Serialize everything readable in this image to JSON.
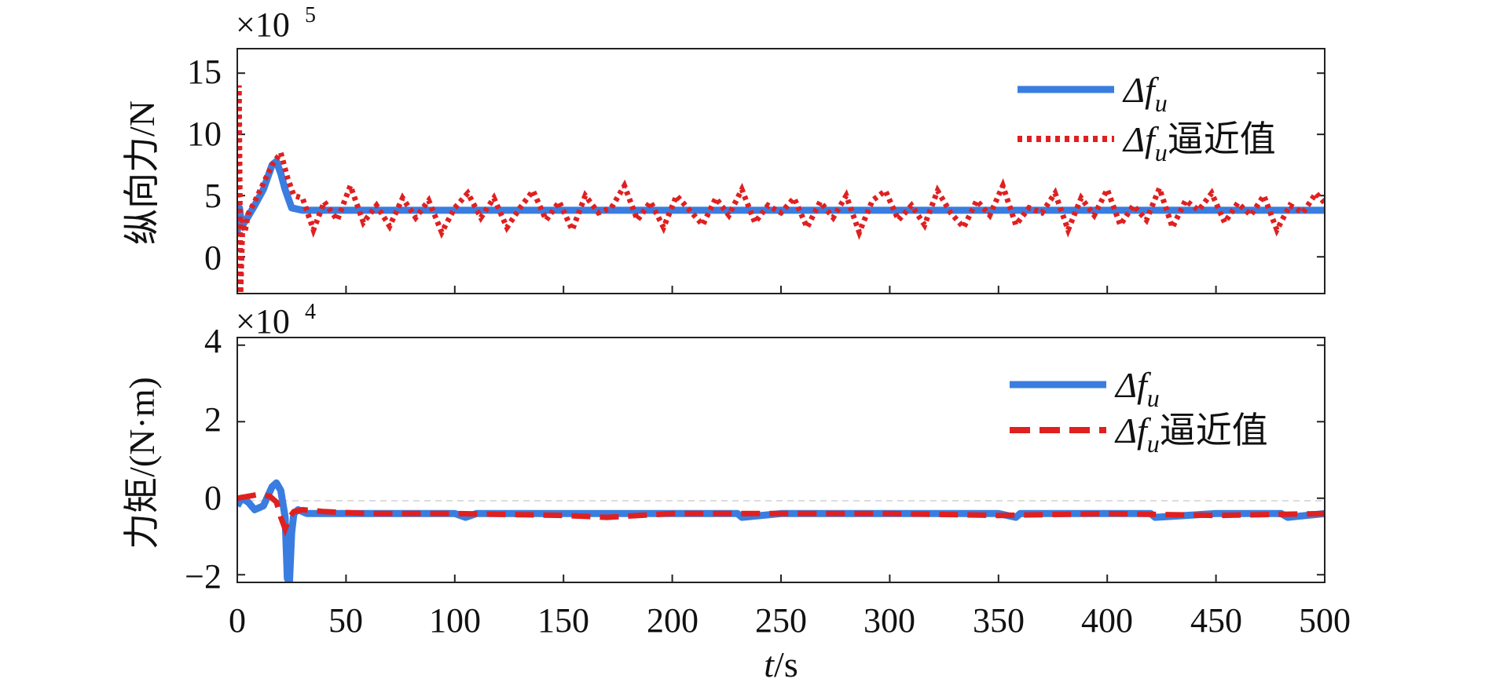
{
  "chart_data": [
    {
      "type": "line",
      "ylabel": "纵向力/N",
      "y_multiplier": {
        "base": "×10",
        "exponent": "5"
      },
      "xlim": [
        0,
        500
      ],
      "ylim": [
        -3,
        17
      ],
      "x_ticks": [
        0,
        50,
        100,
        150,
        200,
        250,
        300,
        350,
        400,
        450,
        500
      ],
      "y_ticks": [
        0,
        5,
        10,
        15
      ],
      "y_tick_labels": [
        "0",
        "5",
        "10",
        "15"
      ],
      "legend_position": "top-right",
      "series": [
        {
          "name": "Δfu",
          "legend_main": "Δf",
          "legend_sub": "u",
          "legend_suffix": "",
          "color": "#3a7de0",
          "style": "solid",
          "x": [
            0,
            1,
            2,
            4,
            8,
            12,
            16,
            18,
            20,
            22,
            25,
            30,
            40,
            60,
            100,
            150,
            200,
            250,
            300,
            350,
            400,
            450,
            500
          ],
          "values": [
            2.0,
            4.0,
            2.5,
            3.0,
            4.2,
            5.5,
            7.5,
            7.8,
            6.8,
            5.5,
            4.0,
            3.8,
            3.8,
            3.8,
            3.8,
            3.8,
            3.8,
            3.8,
            3.8,
            3.8,
            3.8,
            3.8,
            3.8
          ]
        },
        {
          "name": "Δfu逼近值",
          "legend_main": "Δf",
          "legend_sub": "u",
          "legend_suffix": "逼近值",
          "color": "#e02020",
          "style": "dotted",
          "x": [
            0,
            0.8,
            1.5,
            2.5,
            3.5,
            5,
            8,
            12,
            16,
            20,
            23,
            26,
            30,
            35,
            40,
            46,
            52,
            58,
            64,
            70,
            76,
            82,
            88,
            94,
            100,
            106,
            112,
            118,
            124,
            130,
            136,
            142,
            148,
            154,
            160,
            166,
            172,
            178,
            184,
            190,
            196,
            202,
            208,
            214,
            220,
            226,
            232,
            238,
            244,
            250,
            256,
            262,
            268,
            274,
            280,
            286,
            292,
            298,
            304,
            310,
            316,
            322,
            328,
            334,
            340,
            346,
            352,
            358,
            364,
            370,
            376,
            382,
            388,
            394,
            400,
            406,
            412,
            418,
            424,
            430,
            436,
            442,
            448,
            454,
            460,
            466,
            472,
            478,
            484,
            490,
            496,
            500
          ],
          "values": [
            1.0,
            14.0,
            -3.0,
            3.0,
            2.0,
            3.5,
            4.5,
            6.0,
            7.5,
            8.5,
            6.5,
            5.0,
            4.8,
            2.2,
            4.5,
            3.0,
            5.8,
            2.8,
            4.2,
            2.5,
            4.8,
            3.2,
            4.6,
            2.0,
            4.0,
            5.2,
            3.2,
            4.8,
            2.4,
            4.0,
            5.4,
            3.0,
            4.5,
            2.2,
            5.0,
            3.6,
            4.0,
            5.8,
            3.0,
            4.5,
            2.4,
            5.0,
            3.8,
            2.6,
            4.8,
            3.4,
            5.5,
            2.8,
            4.2,
            3.6,
            4.8,
            2.4,
            4.5,
            3.2,
            5.0,
            2.0,
            4.6,
            5.4,
            3.0,
            4.2,
            2.6,
            5.4,
            3.6,
            2.4,
            4.6,
            3.4,
            5.8,
            2.6,
            4.0,
            3.6,
            5.2,
            2.2,
            4.8,
            3.4,
            5.5,
            2.6,
            4.2,
            3.0,
            5.6,
            2.4,
            4.6,
            3.8,
            5.2,
            2.8,
            4.4,
            3.4,
            5.0,
            2.2,
            4.2,
            3.6,
            5.2,
            4.4
          ]
        }
      ]
    },
    {
      "type": "line",
      "ylabel": "力矩/(N·m)",
      "y_multiplier": {
        "base": "×10",
        "exponent": "4"
      },
      "xlabel_main": "t",
      "xlabel_suffix": "/s",
      "xlim": [
        0,
        500
      ],
      "ylim": [
        -2.2,
        4.2
      ],
      "x_ticks": [
        0,
        50,
        100,
        150,
        200,
        250,
        300,
        350,
        400,
        450,
        500
      ],
      "x_tick_labels": [
        "0",
        "50",
        "100",
        "150",
        "200",
        "250",
        "300",
        "350",
        "400",
        "450",
        "500"
      ],
      "y_ticks": [
        -2,
        0,
        2,
        4
      ],
      "y_tick_labels": [
        "−2",
        "0",
        "2",
        "4"
      ],
      "legend_position": "top-right",
      "series": [
        {
          "name": "Δfu",
          "legend_main": "Δf",
          "legend_sub": "u",
          "legend_suffix": "",
          "color": "#3a7de0",
          "style": "solid",
          "x": [
            0,
            2,
            5,
            8,
            12,
            16,
            18,
            20,
            22,
            23,
            24,
            25,
            26,
            28,
            32,
            40,
            60,
            80,
            100,
            105,
            110,
            150,
            160,
            200,
            230,
            232,
            250,
            295,
            300,
            350,
            358,
            360,
            400,
            420,
            422,
            450,
            480,
            483,
            500
          ],
          "values": [
            -0.2,
            0.0,
            -0.1,
            -0.3,
            -0.2,
            0.3,
            0.4,
            0.2,
            -0.5,
            -2.1,
            -2.2,
            -0.9,
            -0.4,
            -0.3,
            -0.4,
            -0.4,
            -0.4,
            -0.4,
            -0.4,
            -0.5,
            -0.4,
            -0.4,
            -0.4,
            -0.4,
            -0.4,
            -0.5,
            -0.4,
            -0.4,
            -0.4,
            -0.4,
            -0.5,
            -0.4,
            -0.4,
            -0.4,
            -0.5,
            -0.4,
            -0.4,
            -0.5,
            -0.4
          ]
        },
        {
          "name": "Δfu逼近值",
          "legend_main": "Δf",
          "legend_sub": "u",
          "legend_suffix": "逼近值",
          "color": "#e02020",
          "style": "dashed",
          "x": [
            0,
            5,
            10,
            15,
            18,
            20,
            22,
            24,
            26,
            30,
            40,
            60,
            100,
            150,
            170,
            200,
            250,
            300,
            350,
            400,
            450,
            500
          ],
          "values": [
            0.0,
            0.05,
            0.1,
            0.05,
            -0.1,
            -0.5,
            -0.8,
            -0.5,
            -0.35,
            -0.3,
            -0.35,
            -0.4,
            -0.4,
            -0.45,
            -0.5,
            -0.4,
            -0.4,
            -0.4,
            -0.45,
            -0.4,
            -0.45,
            -0.4
          ]
        }
      ]
    }
  ]
}
